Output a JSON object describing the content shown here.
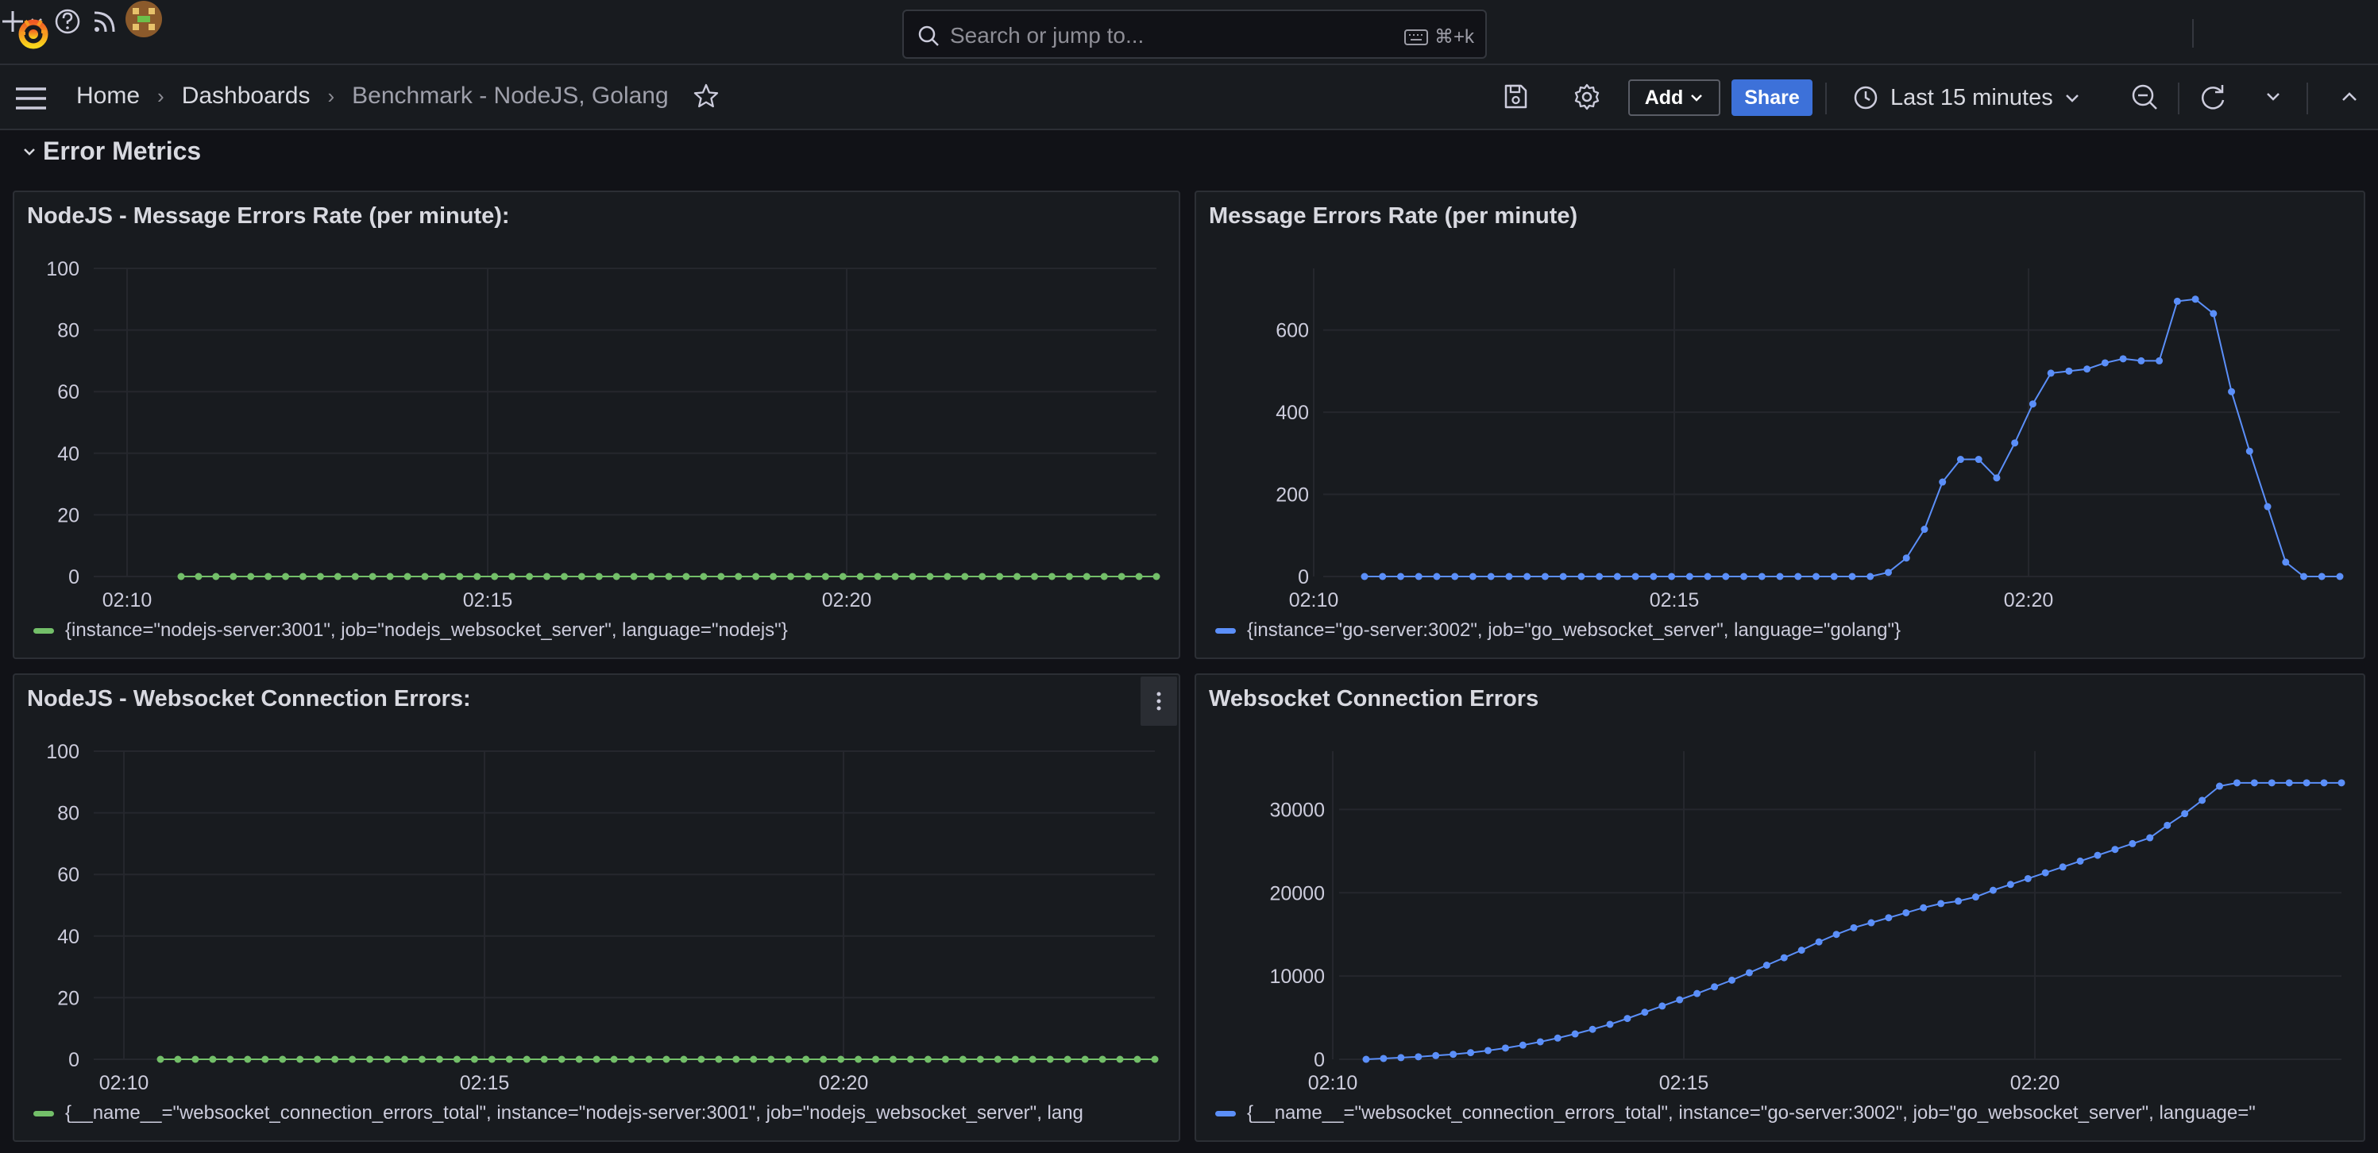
{
  "search": {
    "placeholder": "Search or jump to...",
    "shortcut": "⌘+k"
  },
  "breadcrumb": {
    "home": "Home",
    "dashboards": "Dashboards",
    "current": "Benchmark - NodeJS, Golang"
  },
  "toolbar": {
    "add_label": "Add",
    "share_label": "Share",
    "time_range": "Last 15 minutes"
  },
  "row": {
    "title": "Error Metrics"
  },
  "colors": {
    "green": "#73bf69",
    "blue": "#5b8ff9",
    "bg": "#111217",
    "panel": "#181b1f"
  },
  "panels": [
    {
      "title": "NodeJS - Message Errors Rate (per minute):",
      "legend": "{instance=\"nodejs-server:3001\", job=\"nodejs_websocket_server\", language=\"nodejs\"}",
      "color": "#73bf69"
    },
    {
      "title": "Message Errors Rate (per minute)",
      "legend": "{instance=\"go-server:3002\", job=\"go_websocket_server\", language=\"golang\"}",
      "color": "#5b8ff9"
    },
    {
      "title": "NodeJS - Websocket Connection Errors:",
      "legend": "{__name__=\"websocket_connection_errors_total\", instance=\"nodejs-server:3001\", job=\"nodejs_websocket_server\", lang",
      "color": "#73bf69"
    },
    {
      "title": "Websocket Connection Errors",
      "legend": "{__name__=\"websocket_connection_errors_total\", instance=\"go-server:3002\", job=\"go_websocket_server\", language=\"",
      "color": "#5b8ff9"
    }
  ],
  "chart_data": [
    {
      "type": "line",
      "title": "NodeJS - Message Errors Rate (per minute):",
      "x_ticks": [
        "02:10",
        "02:15",
        "02:20"
      ],
      "y_ticks": [
        0,
        20,
        40,
        60,
        80,
        100
      ],
      "ylim": [
        0,
        100
      ],
      "series": [
        {
          "values": [
            0,
            0,
            0,
            0,
            0,
            0,
            0,
            0,
            0,
            0,
            0,
            0,
            0,
            0,
            0,
            0,
            0,
            0,
            0,
            0,
            0,
            0,
            0,
            0,
            0,
            0,
            0,
            0,
            0,
            0,
            0,
            0,
            0,
            0,
            0,
            0,
            0,
            0,
            0,
            0,
            0,
            0,
            0,
            0,
            0,
            0,
            0,
            0,
            0,
            0,
            0,
            0,
            0,
            0,
            0,
            0,
            0
          ]
        }
      ]
    },
    {
      "type": "line",
      "title": "Message Errors Rate (per minute)",
      "x_ticks": [
        "02:10",
        "02:15",
        "02:20"
      ],
      "y_ticks": [
        0,
        200,
        400,
        600
      ],
      "ylim": [
        0,
        750
      ],
      "series": [
        {
          "values": [
            0,
            0,
            0,
            0,
            0,
            0,
            0,
            0,
            0,
            0,
            0,
            0,
            0,
            0,
            0,
            0,
            0,
            0,
            0,
            0,
            0,
            0,
            0,
            0,
            0,
            0,
            0,
            0,
            0,
            10,
            45,
            115,
            230,
            285,
            285,
            240,
            325,
            420,
            495,
            500,
            505,
            520,
            530,
            525,
            525,
            670,
            675,
            640,
            450,
            305,
            170,
            35,
            0,
            0,
            0
          ]
        }
      ]
    },
    {
      "type": "line",
      "title": "NodeJS - Websocket Connection Errors:",
      "x_ticks": [
        "02:10",
        "02:15",
        "02:20"
      ],
      "y_ticks": [
        0,
        20,
        40,
        60,
        80,
        100
      ],
      "ylim": [
        0,
        100
      ],
      "series": [
        {
          "values": [
            0,
            0,
            0,
            0,
            0,
            0,
            0,
            0,
            0,
            0,
            0,
            0,
            0,
            0,
            0,
            0,
            0,
            0,
            0,
            0,
            0,
            0,
            0,
            0,
            0,
            0,
            0,
            0,
            0,
            0,
            0,
            0,
            0,
            0,
            0,
            0,
            0,
            0,
            0,
            0,
            0,
            0,
            0,
            0,
            0,
            0,
            0,
            0,
            0,
            0,
            0,
            0,
            0,
            0,
            0,
            0,
            0,
            0
          ]
        }
      ]
    },
    {
      "type": "line",
      "title": "Websocket Connection Errors",
      "x_ticks": [
        "02:10",
        "02:15",
        "02:20"
      ],
      "y_ticks": [
        0,
        10000,
        20000,
        30000
      ],
      "ylim": [
        0,
        37000
      ],
      "series": [
        {
          "values": [
            0,
            100,
            200,
            300,
            450,
            600,
            800,
            1050,
            1350,
            1700,
            2100,
            2550,
            3050,
            3600,
            4200,
            4900,
            5650,
            6400,
            7150,
            7900,
            8700,
            9500,
            10400,
            11300,
            12200,
            13100,
            14100,
            15000,
            15800,
            16400,
            17000,
            17600,
            18200,
            18700,
            19000,
            19500,
            20300,
            21000,
            21700,
            22400,
            23100,
            23800,
            24500,
            25200,
            25900,
            26600,
            28100,
            29500,
            31100,
            32800,
            33200,
            33200,
            33200,
            33200,
            33200,
            33200,
            33200
          ]
        }
      ]
    }
  ]
}
